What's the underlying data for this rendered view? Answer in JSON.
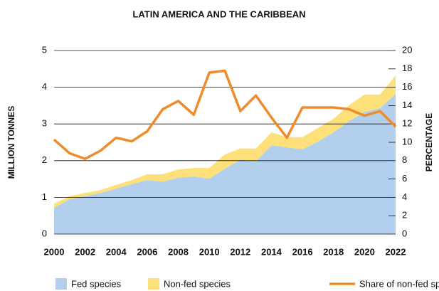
{
  "chart_data": {
    "type": "stacked_area_line",
    "title": "LATIN AMERICA AND THE CARIBBEAN",
    "ylabel": "MILLION TONNES",
    "y2label": "PERCENTAGE",
    "x": [
      2000,
      2001,
      2002,
      2003,
      2004,
      2005,
      2006,
      2007,
      2008,
      2009,
      2010,
      2011,
      2012,
      2013,
      2014,
      2015,
      2016,
      2017,
      2018,
      2019,
      2020,
      2021,
      2022
    ],
    "xlim": [
      2000,
      2022
    ],
    "xticks": [
      2000,
      2002,
      2004,
      2006,
      2008,
      2010,
      2012,
      2014,
      2016,
      2018,
      2020,
      2022
    ],
    "ylim": [
      0,
      5
    ],
    "yticks": [
      0,
      1,
      2,
      3,
      4,
      5
    ],
    "y2lim": [
      0,
      20
    ],
    "y2ticks": [
      0,
      2,
      4,
      6,
      8,
      10,
      12,
      14,
      16,
      18,
      20
    ],
    "grid": true,
    "legend": "bottom",
    "series": [
      {
        "name": "Fed species",
        "color": "#b3cfee",
        "kind": "area",
        "values": [
          0.72,
          0.95,
          1.03,
          1.12,
          1.24,
          1.36,
          1.47,
          1.43,
          1.53,
          1.57,
          1.51,
          1.78,
          2.03,
          1.98,
          2.42,
          2.36,
          2.31,
          2.52,
          2.77,
          3.08,
          3.33,
          3.43,
          3.82
        ]
      },
      {
        "name": "Non-fed species",
        "color": "#fde07a",
        "kind": "area",
        "values": [
          0.11,
          0.08,
          0.09,
          0.08,
          0.1,
          0.11,
          0.16,
          0.2,
          0.23,
          0.23,
          0.29,
          0.39,
          0.3,
          0.35,
          0.35,
          0.28,
          0.33,
          0.37,
          0.37,
          0.43,
          0.47,
          0.37,
          0.5
        ]
      },
      {
        "name": "Share of non-fed species",
        "color": "#ef8b2c",
        "kind": "line",
        "axis": "y2",
        "values": [
          10.3,
          8.8,
          8.2,
          9.1,
          10.5,
          10.1,
          11.2,
          13.6,
          14.5,
          13.0,
          17.6,
          17.8,
          13.4,
          15.1,
          12.7,
          10.5,
          13.8,
          13.8,
          13.8,
          13.6,
          12.9,
          13.4,
          11.7
        ]
      }
    ]
  }
}
